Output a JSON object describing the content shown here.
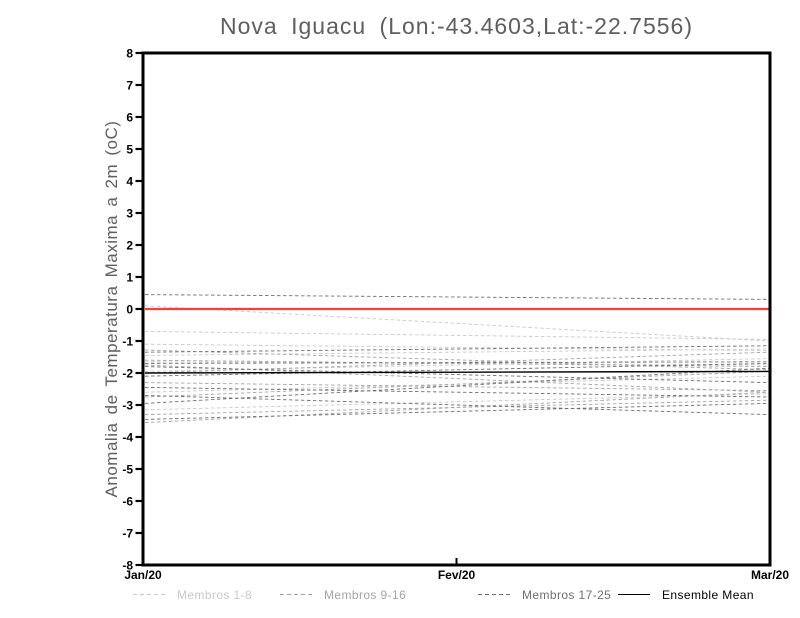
{
  "page": {
    "background": "#ffffff"
  },
  "chart_data": {
    "type": "line",
    "title": "Nova Iguacu (Lon:-43.4603,Lat:-22.7556)",
    "ylabel": "Anomalia de Temperatura Maxima a 2m (oC)",
    "xlabel": "",
    "x_tick_labels": [
      "Jan/20",
      "Fev/20",
      "Mar/20"
    ],
    "x_tick_positions": [
      0,
      0.5,
      1
    ],
    "y_ticks": [
      8,
      7,
      6,
      5,
      4,
      3,
      2,
      1,
      0,
      -1,
      -2,
      -3,
      -4,
      -5,
      -6,
      -7,
      -8
    ],
    "ylim": [
      -8,
      8
    ],
    "grid": false,
    "legend_position": "bottom",
    "frame_color": "#000000",
    "zero_line": {
      "value": 0,
      "color": "#fa3c3c",
      "style": "solid"
    },
    "series": [
      {
        "name": "Membros 1-8",
        "color": "#c9c9c9",
        "style": "dashed",
        "x": [
          "Jan/20",
          "Mar/20"
        ],
        "members": [
          [
            0.1,
            -1.0
          ],
          [
            -0.7,
            -0.95
          ],
          [
            -1.1,
            -1.3
          ],
          [
            -1.45,
            -1.25
          ],
          [
            -1.65,
            -1.75
          ],
          [
            -1.95,
            -1.55
          ],
          [
            -2.6,
            -2.1
          ],
          [
            -3.15,
            -2.65
          ]
        ]
      },
      {
        "name": "Membros 9-16",
        "color": "#a4a4a4",
        "style": "dashed",
        "x": [
          "Jan/20",
          "Mar/20"
        ],
        "members": [
          [
            -1.28,
            -1.9
          ],
          [
            -1.6,
            -1.8
          ],
          [
            -1.75,
            -2.6
          ],
          [
            -2.0,
            -1.35
          ],
          [
            -2.3,
            -2.55
          ],
          [
            -2.75,
            -1.95
          ],
          [
            -3.3,
            -2.85
          ],
          [
            -3.55,
            -2.6
          ]
        ]
      },
      {
        "name": "Membros 17-25",
        "color": "#6f6f6f",
        "style": "dashed",
        "x": [
          "Jan/20",
          "Mar/20"
        ],
        "members": [
          [
            0.45,
            0.3
          ],
          [
            -1.35,
            -1.15
          ],
          [
            -1.7,
            -1.65
          ],
          [
            -1.8,
            -2.3
          ],
          [
            -2.1,
            -1.7
          ],
          [
            -2.45,
            -2.75
          ],
          [
            -2.7,
            -3.3
          ],
          [
            -2.95,
            -1.85
          ],
          [
            -3.45,
            -2.95
          ]
        ]
      },
      {
        "name": "Ensemble Mean",
        "color": "#000000",
        "style": "solid",
        "x": [
          "Jan/20",
          "Mar/20"
        ],
        "members": [
          [
            -2.0,
            -1.95
          ]
        ]
      }
    ],
    "legend": [
      {
        "label": "Membros 1-8",
        "color": "#c9c9c9",
        "style": "dashed"
      },
      {
        "label": "Membros 9-16",
        "color": "#a4a4a4",
        "style": "dashed"
      },
      {
        "label": "Membros 17-25",
        "color": "#6f6f6f",
        "style": "dashed"
      },
      {
        "label": "Ensemble Mean",
        "color": "#000000",
        "style": "solid"
      }
    ]
  }
}
